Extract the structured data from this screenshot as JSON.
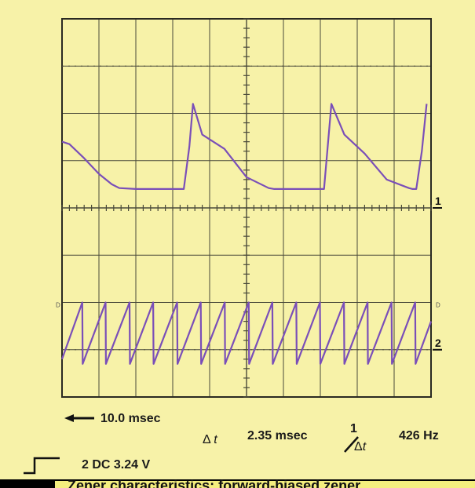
{
  "chart_data": {
    "type": "line",
    "title": "",
    "grid": true,
    "divisions": {
      "horizontal": 10,
      "vertical": 8
    },
    "channel_markers": [
      "1",
      "2"
    ],
    "side_marks": [
      "D",
      "D"
    ],
    "series": [
      {
        "channel": "1",
        "color": "#7a4fb8",
        "x": [
          0,
          0.2,
          0.6,
          1.0,
          1.35,
          1.55,
          2.0,
          2.5,
          2.9,
          3.3,
          3.45,
          3.55,
          3.8,
          4.4,
          5.0,
          5.6,
          5.75,
          6.2,
          6.6,
          6.9,
          7.1,
          7.2,
          7.3,
          7.65,
          8.2,
          8.8,
          9.4,
          9.5,
          9.6,
          9.75,
          9.88
        ],
        "y": [
          5.4,
          5.35,
          5.05,
          4.72,
          4.5,
          4.42,
          4.4,
          4.4,
          4.4,
          4.4,
          5.3,
          6.2,
          5.55,
          5.25,
          4.65,
          4.42,
          4.4,
          4.4,
          4.4,
          4.4,
          4.4,
          5.3,
          6.2,
          5.55,
          5.15,
          4.6,
          4.42,
          4.4,
          4.4,
          5.2,
          6.2
        ]
      },
      {
        "channel": "2",
        "color": "#7a4fb8",
        "x": [
          0,
          0.55,
          0.56,
          1.18,
          1.19,
          1.83,
          1.84,
          2.47,
          2.48,
          3.12,
          3.13,
          3.76,
          3.77,
          4.41,
          4.42,
          5.06,
          5.07,
          5.7,
          5.71,
          6.35,
          6.36,
          6.99,
          7.0,
          7.64,
          7.65,
          8.28,
          8.29,
          8.93,
          8.94,
          9.57,
          9.58,
          10
        ],
        "y": [
          0.8,
          2.0,
          0.7,
          2.0,
          0.7,
          2.0,
          0.7,
          2.0,
          0.7,
          2.0,
          0.7,
          2.0,
          0.7,
          2.0,
          0.7,
          2.0,
          0.7,
          2.0,
          0.7,
          2.0,
          0.7,
          2.0,
          0.7,
          2.0,
          0.7,
          2.0,
          0.7,
          2.0,
          0.7,
          2.0,
          0.7,
          1.6
        ]
      }
    ]
  },
  "readouts": {
    "timebase": "10.0 msec",
    "delta_symbol": "Δ",
    "delta_var": "t",
    "delta_t": "2.35 msec",
    "recip_one": "1",
    "frequency": "426 Hz",
    "channel2_setting": "2 DC 3.24 V"
  },
  "cutoff_caption": "Zener characteristics: forward-biased zener"
}
